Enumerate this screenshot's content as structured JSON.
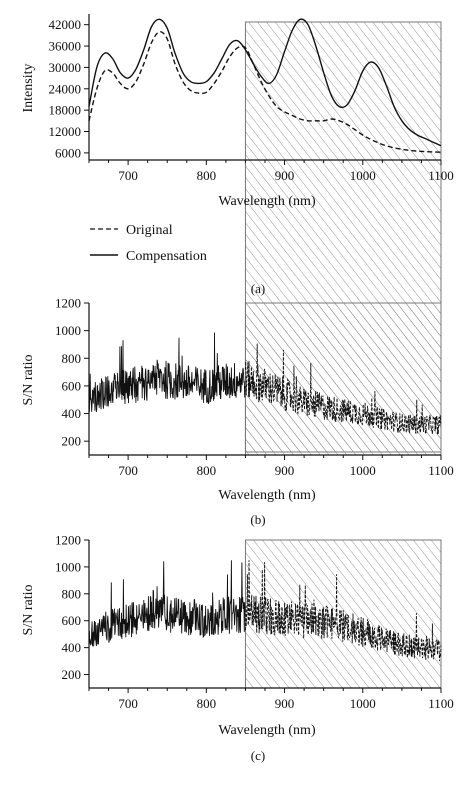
{
  "chart_data": [
    {
      "panel": "(a)",
      "type": "line",
      "xlabel": "Wavelength (nm)",
      "ylabel": "Intensity",
      "xlim": [
        650,
        1100
      ],
      "ylim": [
        4000,
        45000
      ],
      "x_ticks": [
        700,
        800,
        900,
        1000,
        1100
      ],
      "x_tick_labels": [
        "700",
        "800",
        "900",
        "1000",
        "1100"
      ],
      "y_ticks": [
        6000,
        12000,
        18000,
        24000,
        30000,
        36000,
        42000
      ],
      "y_tick_labels": [
        "6000",
        "12000",
        "18000",
        "24000",
        "30000",
        "36000",
        "42000"
      ],
      "shaded_region": [
        850,
        1100
      ],
      "legend_position": "below the plot",
      "series": [
        {
          "name": "Original",
          "style": "dashed",
          "x": [
            650,
            660,
            670,
            680,
            690,
            700,
            710,
            720,
            730,
            740,
            750,
            760,
            770,
            780,
            790,
            800,
            810,
            820,
            830,
            840,
            850,
            860,
            870,
            880,
            890,
            900,
            910,
            920,
            930,
            940,
            950,
            960,
            970,
            980,
            990,
            1000,
            1010,
            1020,
            1030,
            1040,
            1050,
            1060,
            1070,
            1080,
            1090,
            1100
          ],
          "y": [
            15000,
            24000,
            29000,
            28500,
            25500,
            24000,
            26000,
            31000,
            37000,
            40000,
            38000,
            31000,
            26000,
            23500,
            22800,
            23000,
            25500,
            29000,
            33000,
            35500,
            35500,
            31000,
            26000,
            22000,
            19000,
            17500,
            16500,
            15500,
            15000,
            15000,
            15000,
            15500,
            15000,
            14000,
            12500,
            11000,
            9800,
            8800,
            8000,
            7400,
            7000,
            6700,
            6500,
            6350,
            6250,
            6200
          ]
        },
        {
          "name": "Compensation",
          "style": "solid",
          "x": [
            650,
            660,
            670,
            680,
            690,
            700,
            710,
            720,
            730,
            740,
            750,
            760,
            770,
            780,
            790,
            800,
            810,
            820,
            830,
            840,
            850,
            860,
            870,
            880,
            890,
            900,
            910,
            920,
            930,
            940,
            950,
            960,
            970,
            980,
            990,
            1000,
            1010,
            1020,
            1030,
            1040,
            1050,
            1060,
            1070,
            1080,
            1090,
            1100
          ],
          "y": [
            19000,
            30000,
            34000,
            32500,
            28500,
            27000,
            29500,
            35000,
            41500,
            43500,
            41000,
            34000,
            28500,
            26000,
            25500,
            26000,
            28500,
            32500,
            36500,
            37500,
            35000,
            31000,
            27500,
            25500,
            28000,
            34500,
            40500,
            43500,
            42000,
            36000,
            28500,
            22000,
            19000,
            19500,
            23500,
            29000,
            31500,
            30000,
            25000,
            19000,
            15000,
            12500,
            11000,
            10000,
            9000,
            8000
          ]
        }
      ]
    },
    {
      "panel": "(b)",
      "type": "line",
      "xlabel": "Wavelength (nm)",
      "ylabel": "S/N ratio",
      "xlim": [
        650,
        1100
      ],
      "ylim": [
        100,
        1200
      ],
      "x_ticks": [
        700,
        800,
        900,
        1000,
        1100
      ],
      "x_tick_labels": [
        "700",
        "800",
        "900",
        "1000",
        "1100"
      ],
      "y_ticks": [
        200,
        400,
        600,
        800,
        1000,
        1200
      ],
      "y_tick_labels": [
        "200",
        "400",
        "600",
        "800",
        "1000",
        "1200"
      ],
      "shaded_region": [
        850,
        1100
      ],
      "envelope": {
        "x": [
          650,
          675,
          700,
          725,
          735,
          750,
          775,
          800,
          825,
          850,
          875,
          900,
          925,
          950,
          975,
          1000,
          1025,
          1050,
          1075,
          1100
        ],
        "y": [
          500,
          560,
          600,
          630,
          690,
          640,
          620,
          600,
          630,
          650,
          600,
          540,
          480,
          450,
          420,
          400,
          360,
          330,
          320,
          320
        ]
      }
    },
    {
      "panel": "(c)",
      "type": "line",
      "xlabel": "Wavelength (nm)",
      "ylabel": "S/N ratio",
      "xlim": [
        650,
        1100
      ],
      "ylim": [
        100,
        1200
      ],
      "x_ticks": [
        700,
        800,
        900,
        1000,
        1100
      ],
      "x_tick_labels": [
        "700",
        "800",
        "900",
        "1000",
        "1100"
      ],
      "y_ticks": [
        200,
        400,
        600,
        800,
        1000,
        1200
      ],
      "y_tick_labels": [
        "200",
        "400",
        "600",
        "800",
        "1000",
        "1200"
      ],
      "shaded_region": [
        850,
        1100
      ],
      "envelope": {
        "x": [
          650,
          675,
          700,
          725,
          735,
          750,
          775,
          800,
          825,
          850,
          875,
          900,
          925,
          950,
          975,
          1000,
          1025,
          1050,
          1075,
          1100
        ],
        "y": [
          500,
          560,
          600,
          640,
          700,
          650,
          630,
          610,
          640,
          660,
          640,
          620,
          600,
          590,
          560,
          520,
          460,
          420,
          390,
          380
        ]
      }
    }
  ]
}
